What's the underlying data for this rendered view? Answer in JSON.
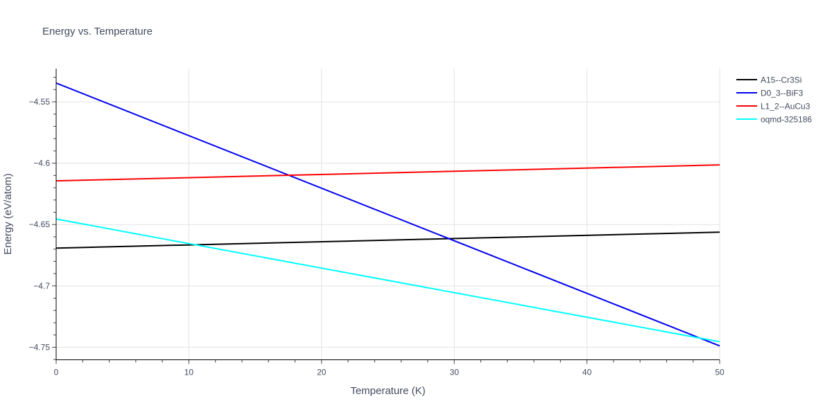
{
  "chart_data": {
    "type": "line",
    "title": "Energy vs. Temperature",
    "xlabel": "Temperature (K)",
    "ylabel": "Energy (eV/atom)",
    "xlim": [
      0,
      50
    ],
    "ylim": [
      -4.7602,
      -4.5229
    ],
    "xticks": [
      0,
      10,
      20,
      30,
      40,
      50
    ],
    "xtick_labels": [
      "0",
      "10",
      "20",
      "30",
      "40",
      "50"
    ],
    "yticks": [
      -4.75,
      -4.7,
      -4.65,
      -4.6,
      -4.55
    ],
    "ytick_labels": [
      "−4.75",
      "−4.7",
      "−4.65",
      "−4.6",
      "−4.55"
    ],
    "x_minor_step": 2,
    "y_minor_step": 0.01,
    "grid": true,
    "legend_position": "top-right",
    "series": [
      {
        "name": "A15--Cr3Si",
        "color": "#000000",
        "x": [
          0,
          50
        ],
        "y": [
          -4.6692,
          -4.6562
        ]
      },
      {
        "name": "D0_3--BiF3",
        "color": "#0000ee",
        "x": [
          0,
          50
        ],
        "y": [
          -4.5347,
          -4.7489
        ]
      },
      {
        "name": "L1_2--AuCu3",
        "color": "#ff0000",
        "x": [
          0,
          50
        ],
        "y": [
          -4.6144,
          -4.6014
        ]
      },
      {
        "name": "oqmd-325186",
        "color": "#00ffff",
        "x": [
          0,
          50
        ],
        "y": [
          -4.6455,
          -4.7455
        ]
      }
    ]
  }
}
